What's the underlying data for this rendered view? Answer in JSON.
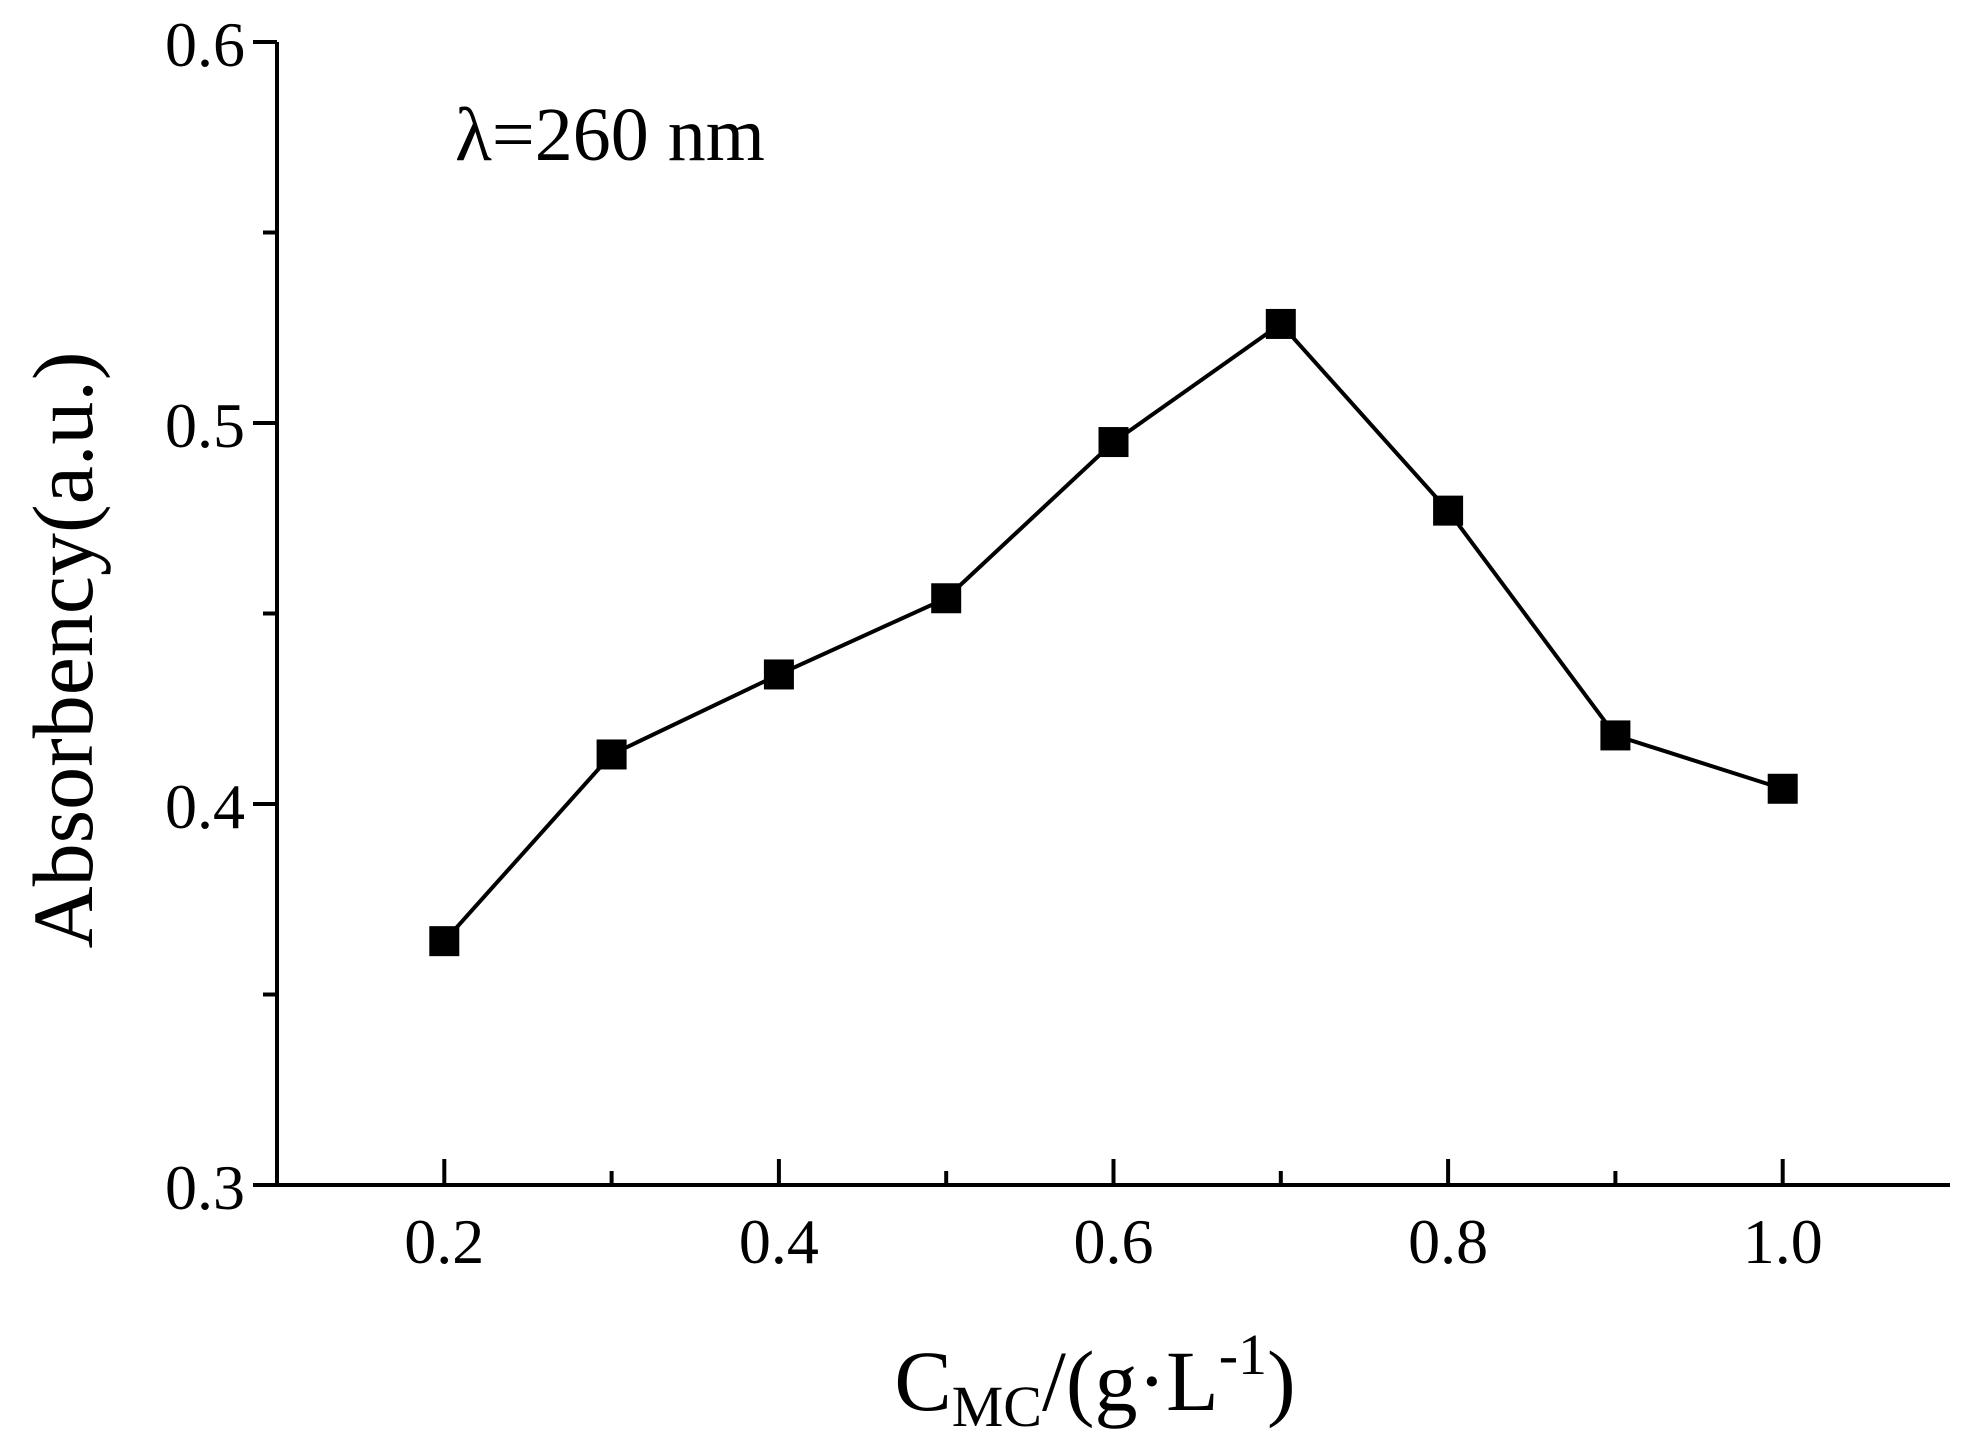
{
  "chart_data": {
    "type": "line",
    "annotation": "λ=260 nm",
    "xlabel": {
      "main": "C",
      "sub": "MC",
      "rest": "/(g·L",
      "sup": "-1",
      "close": ")"
    },
    "ylabel": "Absorbency(a.u.)",
    "xlim": [
      0.1,
      1.1
    ],
    "ylim": [
      0.3,
      0.6
    ],
    "xticks": [
      0.2,
      0.4,
      0.6,
      0.8,
      1.0
    ],
    "xtick_labels": [
      "0.2",
      "0.4",
      "0.6",
      "0.8",
      "1.0"
    ],
    "xminor": [
      0.3,
      0.5,
      0.7,
      0.9
    ],
    "yticks": [
      0.3,
      0.4,
      0.5,
      0.6
    ],
    "ytick_labels": [
      "0.3",
      "0.4",
      "0.5",
      "0.6"
    ],
    "yminor": [
      0.35,
      0.45,
      0.55
    ],
    "grid": false,
    "marker": "square",
    "color": "#000000",
    "series": [
      {
        "x": [
          0.2,
          0.3,
          0.4,
          0.5,
          0.6,
          0.7,
          0.8,
          0.9,
          1.0
        ],
        "y": [
          0.364,
          0.413,
          0.434,
          0.454,
          0.495,
          0.526,
          0.477,
          0.418,
          0.404
        ]
      }
    ]
  }
}
